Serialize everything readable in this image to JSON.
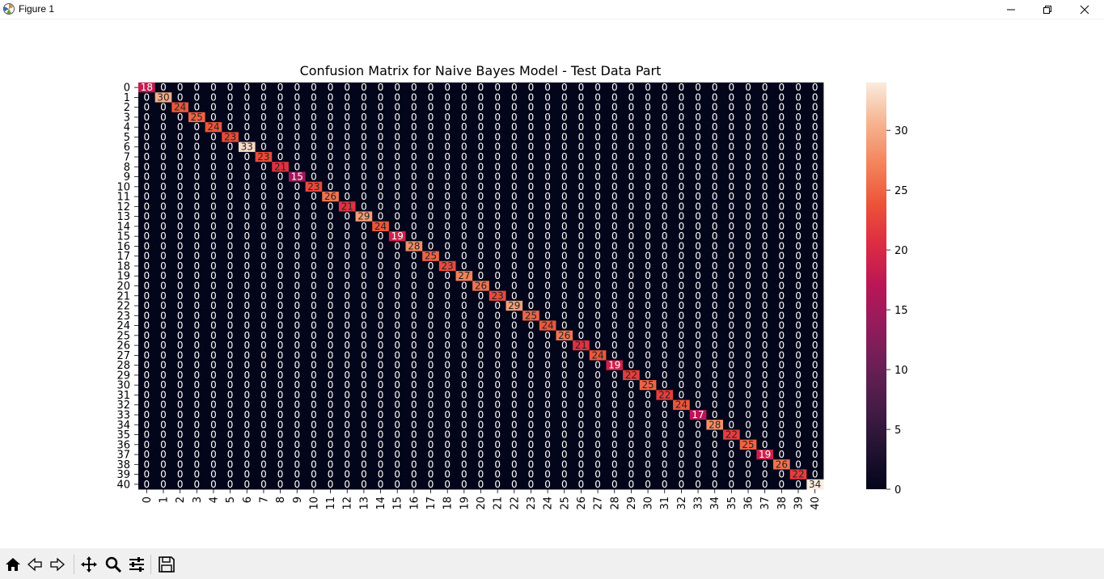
{
  "window": {
    "title": "Figure 1"
  },
  "toolbar": {
    "tools": [
      {
        "name": "home-icon"
      },
      {
        "name": "back-arrow-icon"
      },
      {
        "name": "forward-arrow-icon"
      },
      {
        "name": "pan-move-icon"
      },
      {
        "name": "zoom-magnifier-icon"
      },
      {
        "name": "configure-subplots-icon"
      },
      {
        "name": "save-floppy-icon"
      }
    ]
  },
  "chart_data": {
    "type": "heatmap",
    "title": "Confusion Matrix for Naive Bayes Model - Test Data Part",
    "xlabel": "",
    "ylabel": "",
    "row_labels": [
      "0",
      "1",
      "2",
      "3",
      "4",
      "5",
      "6",
      "7",
      "8",
      "9",
      "10",
      "11",
      "12",
      "13",
      "14",
      "15",
      "16",
      "17",
      "18",
      "19",
      "20",
      "21",
      "22",
      "23",
      "24",
      "25",
      "26",
      "27",
      "28",
      "29",
      "30",
      "31",
      "32",
      "33",
      "34",
      "35",
      "36",
      "37",
      "38",
      "39",
      "40"
    ],
    "col_labels": [
      "0",
      "1",
      "2",
      "3",
      "4",
      "5",
      "6",
      "7",
      "8",
      "9",
      "10",
      "11",
      "12",
      "13",
      "14",
      "15",
      "16",
      "17",
      "18",
      "19",
      "20",
      "21",
      "22",
      "23",
      "24",
      "25",
      "26",
      "27",
      "28",
      "29",
      "30",
      "31",
      "32",
      "33",
      "34",
      "35",
      "36",
      "37",
      "38",
      "39",
      "40"
    ],
    "diagonal": [
      18,
      30,
      24,
      25,
      24,
      23,
      33,
      23,
      21,
      15,
      23,
      26,
      21,
      29,
      24,
      19,
      28,
      25,
      23,
      27,
      26,
      23,
      29,
      25,
      24,
      26,
      21,
      24,
      19,
      22,
      25,
      22,
      24,
      17,
      28,
      22,
      25,
      19,
      26,
      22,
      34
    ],
    "off_diagonal_value": 0,
    "annotated": true,
    "colormap": "rocket",
    "vmin": 0,
    "vmax": 34,
    "colorbar_ticks": [
      "0",
      "5",
      "10",
      "15",
      "20",
      "25",
      "30"
    ],
    "colorbar_tick_values": [
      0,
      5,
      10,
      15,
      20,
      25,
      30
    ]
  }
}
